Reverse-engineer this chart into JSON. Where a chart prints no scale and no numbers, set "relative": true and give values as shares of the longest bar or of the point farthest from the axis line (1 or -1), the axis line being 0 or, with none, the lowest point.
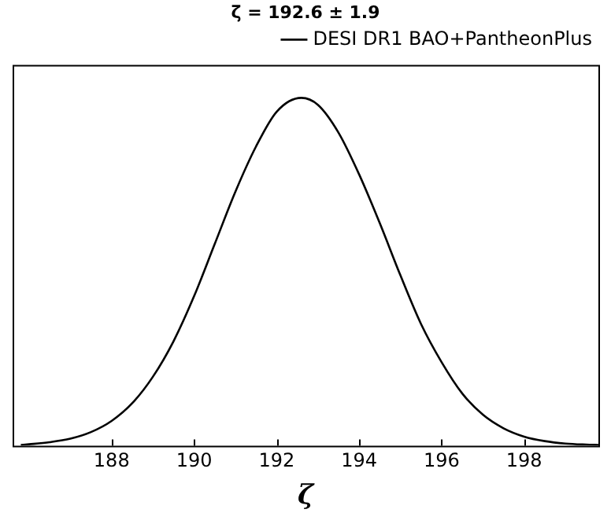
{
  "chart_data": {
    "type": "line",
    "title": "ζ = 192.6 ± 1.9",
    "xlabel": "ζ",
    "relative": true,
    "xlim": [
      185.6,
      199.8
    ],
    "xticks": [
      188,
      190,
      192,
      194,
      196,
      198
    ],
    "legend": "top right",
    "grid": false,
    "marker": "none",
    "line_style": "solid",
    "series": [
      {
        "name": "DESI DR1 BAO+PantheonPlus",
        "color": "#000000",
        "x": [
          185.8,
          186,
          186.5,
          187,
          187.5,
          188,
          188.5,
          189,
          189.5,
          190,
          190.5,
          191,
          191.5,
          192,
          192.6,
          193,
          193.5,
          194,
          194.5,
          195,
          195.5,
          196,
          196.5,
          197,
          197.5,
          198,
          198.5,
          199,
          199.5,
          199.8
        ],
        "values": [
          0.002,
          0.004,
          0.01,
          0.02,
          0.039,
          0.071,
          0.122,
          0.198,
          0.3,
          0.43,
          0.58,
          0.73,
          0.86,
          0.96,
          1,
          0.98,
          0.9,
          0.78,
          0.64,
          0.49,
          0.35,
          0.24,
          0.15,
          0.089,
          0.05,
          0.026,
          0.013,
          0.006,
          0.003,
          0.002
        ]
      }
    ]
  }
}
